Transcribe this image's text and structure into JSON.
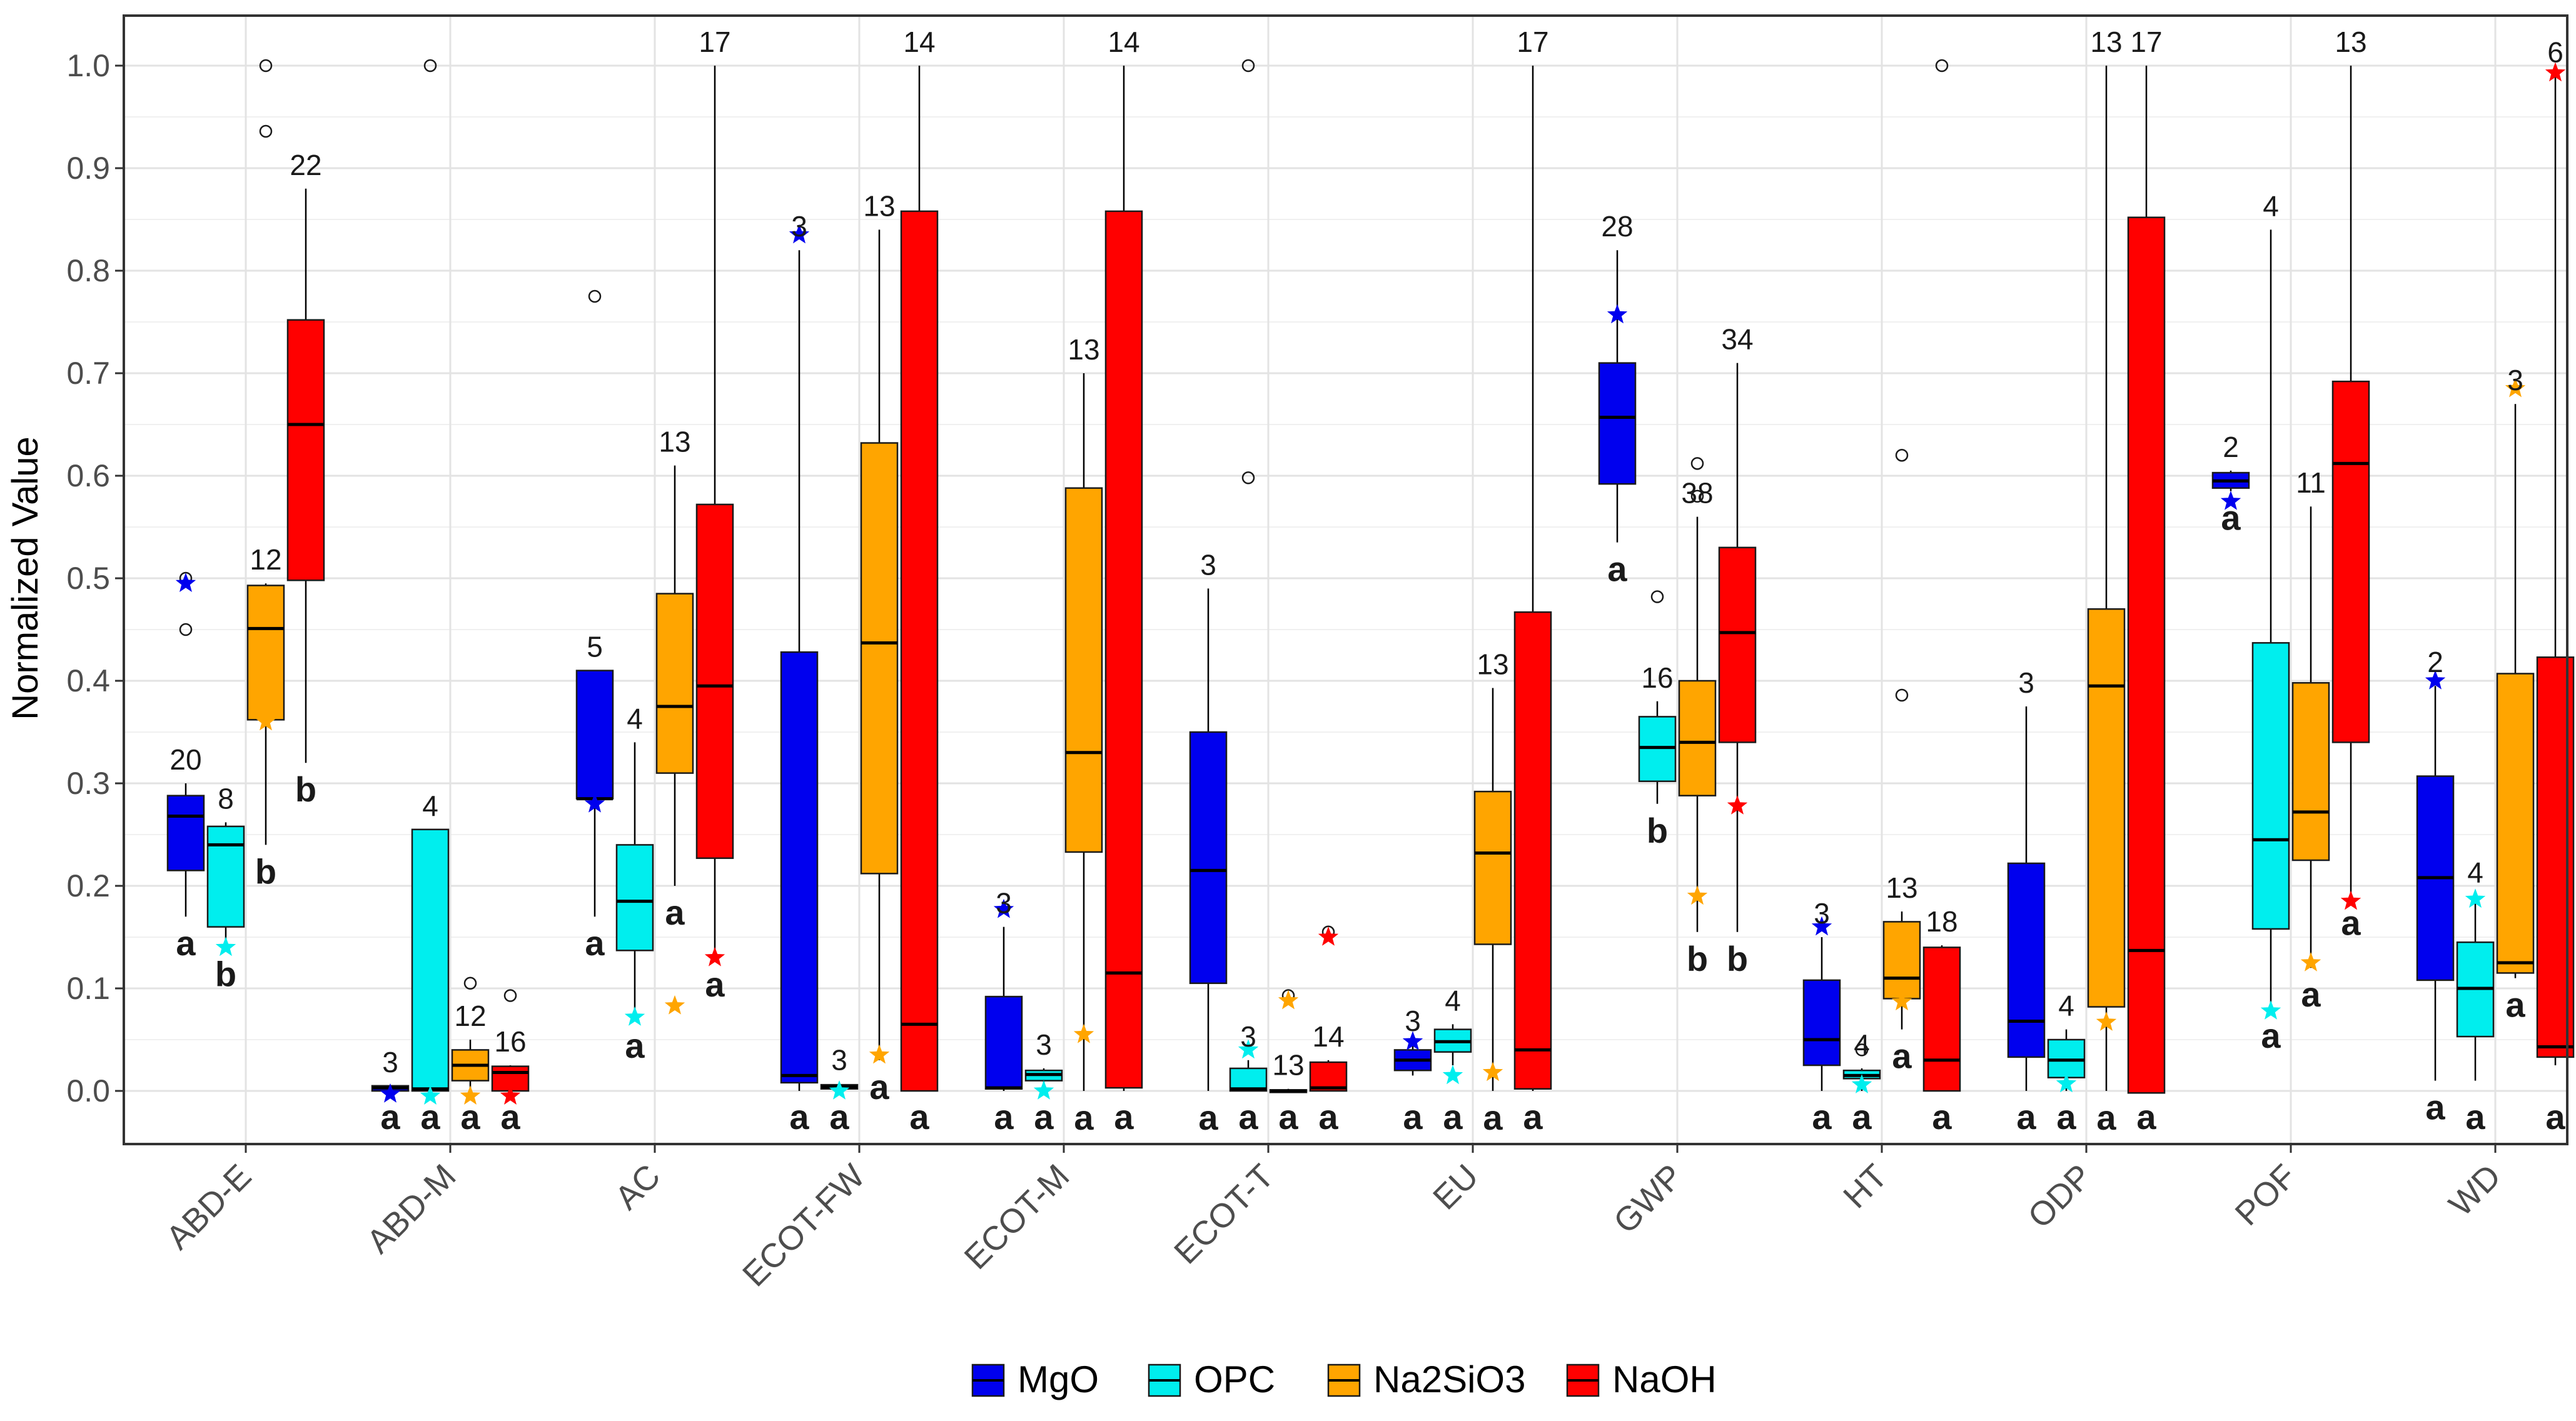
{
  "chart_data": {
    "type": "boxplot",
    "title": "",
    "xlabel": "",
    "ylabel": "Normalized Value",
    "ylim": [
      -0.05,
      1.05
    ],
    "yticks": [
      "0.0",
      "0.1",
      "0.2",
      "0.3",
      "0.4",
      "0.5",
      "0.6",
      "0.7",
      "0.8",
      "0.9",
      "1.0"
    ],
    "legend_position": "bottom",
    "categories": [
      "ABD-E",
      "ABD-M",
      "AC",
      "ECOT-FW",
      "ECOT-M",
      "ECOT-T",
      "EU",
      "GWP",
      "HT",
      "ODP",
      "POF",
      "WD"
    ],
    "series": [
      {
        "name": "MgO",
        "color": "#0000ee",
        "star_color": "#0000ee",
        "boxes": [
          {
            "q1": 0.215,
            "med": 0.268,
            "q3": 0.288,
            "wlo": 0.17,
            "whi": 0.3,
            "n": "20",
            "group": "a",
            "star": 0.495,
            "outliers": [
              0.45,
              0.5
            ]
          },
          {
            "q1": 0.0,
            "med": 0.003,
            "q3": 0.005,
            "wlo": 0.0,
            "whi": 0.005,
            "n": "3",
            "group": "a",
            "star": -0.003,
            "outliers": []
          },
          {
            "q1": 0.285,
            "med": 0.285,
            "q3": 0.41,
            "wlo": 0.17,
            "whi": 0.41,
            "n": "5",
            "group": "a",
            "star": 0.28,
            "outliers": [
              0.775
            ]
          },
          {
            "q1": 0.008,
            "med": 0.015,
            "q3": 0.428,
            "wlo": 0.0,
            "whi": 0.82,
            "n": "3",
            "group": "a",
            "star": 0.835,
            "outliers": []
          },
          {
            "q1": 0.002,
            "med": 0.003,
            "q3": 0.092,
            "wlo": 0.0,
            "whi": 0.16,
            "n": "3",
            "group": "a",
            "star": 0.177,
            "outliers": []
          },
          {
            "q1": 0.105,
            "med": 0.215,
            "q3": 0.35,
            "wlo": 0.0,
            "whi": 0.49,
            "n": "3",
            "group": "a",
            "star": null,
            "outliers": []
          },
          {
            "q1": 0.02,
            "med": 0.03,
            "q3": 0.04,
            "wlo": 0.015,
            "whi": 0.045,
            "n": "3",
            "group": "a",
            "star": 0.048,
            "outliers": []
          },
          {
            "q1": 0.592,
            "med": 0.657,
            "q3": 0.71,
            "wlo": 0.535,
            "whi": 0.82,
            "n": "28",
            "group": "a",
            "star": 0.757,
            "outliers": []
          },
          {
            "q1": 0.025,
            "med": 0.05,
            "q3": 0.108,
            "wlo": 0.0,
            "whi": 0.15,
            "n": "3",
            "group": "a",
            "star": 0.16,
            "outliers": []
          },
          {
            "q1": 0.033,
            "med": 0.068,
            "q3": 0.222,
            "wlo": 0.0,
            "whi": 0.375,
            "n": "3",
            "group": "a",
            "star": null,
            "outliers": []
          },
          {
            "q1": 0.588,
            "med": 0.595,
            "q3": 0.603,
            "wlo": 0.585,
            "whi": 0.605,
            "n": "2",
            "group": "a",
            "star": 0.575,
            "outliers": []
          },
          {
            "q1": 0.108,
            "med": 0.208,
            "q3": 0.307,
            "wlo": 0.01,
            "whi": 0.395,
            "n": "2",
            "group": "a",
            "star": 0.4,
            "outliers": []
          }
        ]
      },
      {
        "name": "OPC",
        "color": "#00eeee",
        "star_color": "#00eeee",
        "boxes": [
          {
            "q1": 0.16,
            "med": 0.24,
            "q3": 0.258,
            "wlo": 0.14,
            "whi": 0.262,
            "n": "8",
            "group": "b",
            "star": 0.14,
            "outliers": []
          },
          {
            "q1": 0.0,
            "med": 0.002,
            "q3": 0.255,
            "wlo": 0.0,
            "whi": 0.255,
            "n": "4",
            "group": "a",
            "star": -0.005,
            "outliers": [
              1.0
            ]
          },
          {
            "q1": 0.137,
            "med": 0.185,
            "q3": 0.24,
            "wlo": 0.07,
            "whi": 0.34,
            "n": "4",
            "group": "a",
            "star": 0.072,
            "outliers": []
          },
          {
            "q1": 0.002,
            "med": 0.004,
            "q3": 0.006,
            "wlo": 0.0,
            "whi": 0.007,
            "n": "3",
            "group": "a",
            "star": 0.0,
            "outliers": []
          },
          {
            "q1": 0.01,
            "med": 0.016,
            "q3": 0.02,
            "wlo": 0.0,
            "whi": 0.022,
            "n": "3",
            "group": "a",
            "star": 0.0,
            "outliers": []
          },
          {
            "q1": 0.0,
            "med": 0.002,
            "q3": 0.022,
            "wlo": 0.0,
            "whi": 0.03,
            "n": "3",
            "group": "a",
            "star": 0.04,
            "outliers": [
              1.0,
              0.598
            ]
          },
          {
            "q1": 0.038,
            "med": 0.048,
            "q3": 0.06,
            "wlo": 0.025,
            "whi": 0.065,
            "n": "4",
            "group": "a",
            "star": 0.015,
            "outliers": []
          },
          {
            "q1": 0.302,
            "med": 0.335,
            "q3": 0.365,
            "wlo": 0.28,
            "whi": 0.38,
            "n": "16",
            "group": "b",
            "star": null,
            "outliers": [
              0.482
            ]
          },
          {
            "q1": 0.012,
            "med": 0.015,
            "q3": 0.02,
            "wlo": 0.0,
            "whi": 0.022,
            "n": "4",
            "group": "a",
            "star": 0.006,
            "outliers": [
              0.04
            ]
          },
          {
            "q1": 0.013,
            "med": 0.03,
            "q3": 0.05,
            "wlo": 0.0,
            "whi": 0.06,
            "n": "4",
            "group": "a",
            "star": 0.007,
            "outliers": []
          },
          {
            "q1": 0.158,
            "med": 0.245,
            "q3": 0.437,
            "wlo": 0.08,
            "whi": 0.84,
            "n": "4",
            "group": "a",
            "star": 0.078,
            "outliers": []
          },
          {
            "q1": 0.053,
            "med": 0.1,
            "q3": 0.145,
            "wlo": 0.01,
            "whi": 0.19,
            "n": "4",
            "group": "a",
            "star": 0.187,
            "outliers": []
          }
        ]
      },
      {
        "name": "Na2SiO3",
        "color": "#ffa500",
        "star_color": "#ffa500",
        "boxes": [
          {
            "q1": 0.362,
            "med": 0.451,
            "q3": 0.493,
            "wlo": 0.24,
            "whi": 0.495,
            "n": "12",
            "group": "b",
            "star": 0.36,
            "outliers": [
              0.936,
              1.0
            ]
          },
          {
            "q1": 0.01,
            "med": 0.025,
            "q3": 0.04,
            "wlo": 0.0,
            "whi": 0.05,
            "n": "12",
            "group": "a",
            "star": -0.005,
            "outliers": [
              0.105
            ]
          },
          {
            "q1": 0.31,
            "med": 0.375,
            "q3": 0.485,
            "wlo": 0.2,
            "whi": 0.61,
            "n": "13",
            "group": "a",
            "star": 0.083,
            "outliers": []
          },
          {
            "q1": 0.212,
            "med": 0.437,
            "q3": 0.632,
            "wlo": 0.03,
            "whi": 0.84,
            "n": "13",
            "group": "a",
            "star": 0.035,
            "outliers": []
          },
          {
            "q1": 0.233,
            "med": 0.33,
            "q3": 0.588,
            "wlo": 0.0,
            "whi": 0.7,
            "n": "13",
            "group": "a",
            "star": 0.055,
            "outliers": []
          },
          {
            "q1": 0.0,
            "med": 0.0,
            "q3": 0.001,
            "wlo": 0.0,
            "whi": 0.002,
            "n": "13",
            "group": "a",
            "star": 0.088,
            "outliers": [
              0.093
            ]
          },
          {
            "q1": 0.143,
            "med": 0.232,
            "q3": 0.292,
            "wlo": 0.0,
            "whi": 0.393,
            "n": "13",
            "group": "a",
            "star": 0.018,
            "outliers": []
          },
          {
            "q1": 0.288,
            "med": 0.34,
            "q3": 0.4,
            "wlo": 0.155,
            "whi": 0.56,
            "n": "38",
            "group": "b",
            "star": 0.19,
            "outliers": [
              0.58,
              0.612
            ]
          },
          {
            "q1": 0.09,
            "med": 0.11,
            "q3": 0.165,
            "wlo": 0.06,
            "whi": 0.175,
            "n": "13",
            "group": "a",
            "star": 0.087,
            "outliers": [
              0.386,
              0.62
            ]
          },
          {
            "q1": 0.082,
            "med": 0.395,
            "q3": 0.47,
            "wlo": 0.0,
            "whi": 1.0,
            "n": "13",
            "group": "a",
            "star": 0.067,
            "outliers": []
          },
          {
            "q1": 0.225,
            "med": 0.272,
            "q3": 0.398,
            "wlo": 0.12,
            "whi": 0.57,
            "n": "11",
            "group": "a",
            "star": 0.125,
            "outliers": []
          },
          {
            "q1": 0.115,
            "med": 0.125,
            "q3": 0.407,
            "wlo": 0.11,
            "whi": 0.67,
            "n": "3",
            "group": "a",
            "star": 0.685,
            "outliers": []
          }
        ]
      },
      {
        "name": "NaOH",
        "color": "#ff0000",
        "star_color": "#ff0000",
        "boxes": [
          {
            "q1": 0.498,
            "med": 0.65,
            "q3": 0.752,
            "wlo": 0.32,
            "whi": 0.88,
            "n": "22",
            "group": "b",
            "star": null,
            "outliers": []
          },
          {
            "q1": 0.0,
            "med": 0.018,
            "q3": 0.024,
            "wlo": 0.0,
            "whi": 0.025,
            "n": "16",
            "group": "a",
            "star": -0.005,
            "outliers": [
              0.093
            ]
          },
          {
            "q1": 0.227,
            "med": 0.395,
            "q3": 0.572,
            "wlo": 0.13,
            "whi": 1.0,
            "n": "17",
            "group": "a",
            "star": 0.13,
            "outliers": []
          },
          {
            "q1": 0.0,
            "med": 0.065,
            "q3": 0.858,
            "wlo": 0.0,
            "whi": 1.0,
            "n": "14",
            "group": "a",
            "star": null,
            "outliers": []
          },
          {
            "q1": 0.003,
            "med": 0.115,
            "q3": 0.858,
            "wlo": 0.0,
            "whi": 1.0,
            "n": "14",
            "group": "a",
            "star": null,
            "outliers": []
          },
          {
            "q1": 0.0,
            "med": 0.003,
            "q3": 0.028,
            "wlo": 0.0,
            "whi": 0.03,
            "n": "14",
            "group": "a",
            "star": 0.15,
            "outliers": [
              0.155
            ]
          },
          {
            "q1": 0.002,
            "med": 0.04,
            "q3": 0.467,
            "wlo": 0.0,
            "whi": 1.0,
            "n": "17",
            "group": "a",
            "star": null,
            "outliers": []
          },
          {
            "q1": 0.34,
            "med": 0.447,
            "q3": 0.53,
            "wlo": 0.155,
            "whi": 0.71,
            "n": "34",
            "group": "b",
            "star": 0.278,
            "outliers": []
          },
          {
            "q1": 0.0,
            "med": 0.03,
            "q3": 0.14,
            "wlo": 0.0,
            "whi": 0.142,
            "n": "18",
            "group": "a",
            "star": null,
            "outliers": [
              1.0
            ]
          },
          {
            "q1": -0.002,
            "med": 0.137,
            "q3": 0.852,
            "wlo": 0.0,
            "whi": 1.0,
            "n": "17",
            "group": "a",
            "star": null,
            "outliers": []
          },
          {
            "q1": 0.34,
            "med": 0.612,
            "q3": 0.692,
            "wlo": 0.19,
            "whi": 1.0,
            "n": "13",
            "group": "a",
            "star": 0.185,
            "outliers": []
          },
          {
            "q1": 0.033,
            "med": 0.043,
            "q3": 0.423,
            "wlo": 0.025,
            "whi": 0.99,
            "n": "6",
            "group": "a",
            "star": 0.993,
            "outliers": []
          }
        ]
      }
    ]
  }
}
